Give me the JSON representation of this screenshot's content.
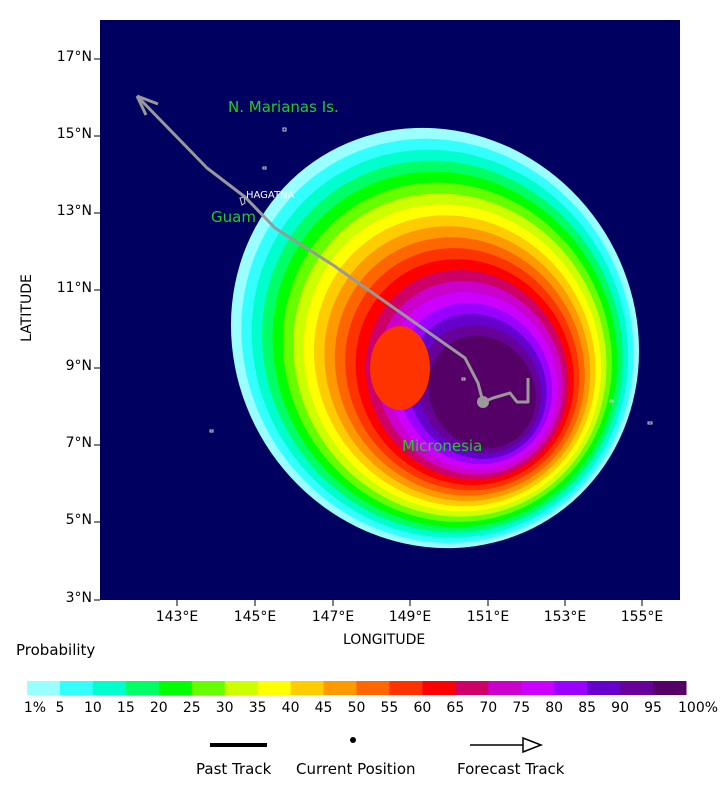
{
  "map": {
    "background_color": "#000060",
    "lat_ticks": [
      "17°N",
      "15°N",
      "13°N",
      "11°N",
      "9°N",
      "7°N",
      "5°N",
      "3°N"
    ],
    "lon_ticks": [
      "143°E",
      "145°E",
      "147°E",
      "149°E",
      "151°E",
      "153°E",
      "155°E"
    ],
    "xlabel": "LONGITUDE",
    "ylabel": "LATITUDE",
    "places": [
      {
        "name": "N. Marianas Is.",
        "color": "#22cc22"
      },
      {
        "name": "HAGATNA",
        "color": "#ffffff"
      },
      {
        "name": "Guam",
        "color": "#22cc22"
      },
      {
        "name": "Micronesia",
        "color": "#22cc22"
      }
    ],
    "track_color": "#999999"
  },
  "colorbar": {
    "title": "Probability",
    "colors": [
      "#99ffff",
      "#33ffff",
      "#00ffcc",
      "#00ff66",
      "#00ff00",
      "#66ff00",
      "#ccff00",
      "#ffff00",
      "#ffcc00",
      "#ff9900",
      "#ff6600",
      "#ff3300",
      "#ff0000",
      "#cc0066",
      "#cc00cc",
      "#cc00ff",
      "#9900ff",
      "#6600cc",
      "#660099",
      "#550066"
    ],
    "labels": [
      "1%",
      "5",
      "10",
      "15",
      "20",
      "25",
      "30",
      "35",
      "40",
      "45",
      "50",
      "55",
      "60",
      "65",
      "70",
      "75",
      "80",
      "85",
      "90",
      "95",
      "100%"
    ]
  },
  "legend": {
    "past_track": "Past Track",
    "current_position": "Current Position",
    "forecast_track": "Forecast Track"
  }
}
